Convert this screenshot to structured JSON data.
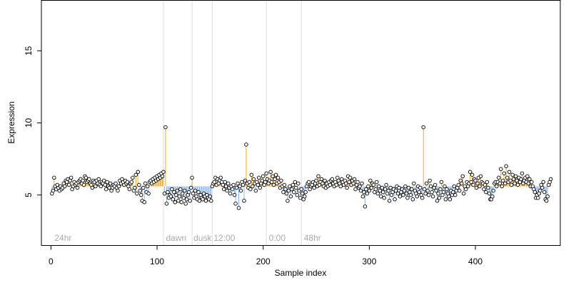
{
  "chart_data": {
    "type": "scatter",
    "xlabel": "Sample index",
    "ylabel": "Expression",
    "xlim": [
      -9,
      480
    ],
    "ylim": [
      1.5,
      18.5
    ],
    "x_ticks": [
      0,
      100,
      200,
      300,
      400
    ],
    "y_ticks": [
      5,
      10,
      15
    ],
    "baseline": 5.6,
    "colors": {
      "above": "#f5a623",
      "below": "#8db6e8",
      "points_fill": "#ffffff",
      "points_stroke": "#000000",
      "group_lines": "#dddddd",
      "group_labels": "#aaaaaa"
    },
    "group_boundaries": [
      106,
      133,
      152,
      203,
      236
    ],
    "group_labels": [
      {
        "x": 2,
        "text": "24hr"
      },
      {
        "x": 107,
        "text": "dawn"
      },
      {
        "x": 133,
        "text": "dusk"
      },
      {
        "x": 152,
        "text": "12:00"
      },
      {
        "x": 204,
        "text": "0:00"
      },
      {
        "x": 237,
        "text": "48hr"
      }
    ],
    "series": [
      {
        "values": [
          5.1,
          5.3,
          6.2,
          5.6,
          5.4,
          5.7,
          5.5,
          5.3,
          5.6,
          5.4,
          5.5,
          5.8,
          5.6,
          6.0,
          5.9,
          6.1,
          5.7,
          6.0,
          6.2,
          5.4,
          5.6,
          5.9,
          5.7,
          5.8,
          5.5,
          5.9,
          6.0,
          6.1,
          5.8,
          6.0,
          5.7,
          6.3,
          6.2,
          5.9,
          6.0,
          6.1,
          5.8,
          5.7,
          5.5,
          6.0,
          5.9,
          5.6,
          6.0,
          5.8,
          6.1,
          5.7,
          5.6,
          5.9,
          5.8,
          6.0,
          5.7,
          5.4,
          5.9,
          5.6,
          5.5,
          5.8,
          5.3,
          5.5,
          5.7,
          5.6,
          5.8,
          5.5,
          5.3,
          5.6,
          6.0,
          5.8,
          6.1,
          5.9,
          5.7,
          6.0,
          5.8,
          5.9,
          5.6,
          5.4,
          5.8,
          5.9,
          6.2,
          5.3,
          5.5,
          6.4,
          5.1,
          6.6,
          5.7,
          5.3,
          5.0,
          4.6,
          5.5,
          4.5,
          5.8,
          5.2,
          5.6,
          5.1,
          5.9,
          6.0,
          5.8,
          6.1,
          5.9,
          6.2,
          6.0,
          6.3,
          6.1,
          6.4,
          6.2,
          6.5,
          6.3,
          6.6,
          5.1,
          9.7,
          4.4,
          5.2,
          4.8,
          5.0,
          4.9,
          5.4,
          4.7,
          5.2,
          4.5,
          5.0,
          5.3,
          4.6,
          4.9,
          5.4,
          4.5,
          5.1,
          4.8,
          5.3,
          4.4,
          4.7,
          5.0,
          5.2,
          4.6,
          5.5,
          6.2,
          5.1,
          4.8,
          5.3,
          4.9,
          4.7,
          5.2,
          4.6,
          5.0,
          4.8,
          4.7,
          5.1,
          4.9,
          4.6,
          5.0,
          4.8,
          4.7,
          4.9,
          4.6,
          5.6,
          5.8,
          5.9,
          6.2,
          5.7,
          6.1,
          5.8,
          6.0,
          6.2,
          5.9,
          5.7,
          5.4,
          5.9,
          5.6,
          5.3,
          5.8,
          5.5,
          5.1,
          5.6,
          5.4,
          5.7,
          5.0,
          4.4,
          5.5,
          5.8,
          4.1,
          5.6,
          5.3,
          5.9,
          5.7,
          4.6,
          6.0,
          8.5,
          5.8,
          5.5,
          5.9,
          5.4,
          6.4,
          5.6,
          6.1,
          5.8,
          5.3,
          5.9,
          5.7,
          6.2,
          5.5,
          5.8,
          6.0,
          6.3,
          5.7,
          5.9,
          6.5,
          6.1,
          5.8,
          6.0,
          6.6,
          5.9,
          6.3,
          5.7,
          6.1,
          6.4,
          5.8,
          6.2,
          5.9,
          5.5,
          6.0,
          5.6,
          5.2,
          5.7,
          5.4,
          5.1,
          4.6,
          5.3,
          5.6,
          4.9,
          5.4,
          5.7,
          5.2,
          5.9,
          5.5,
          5.0,
          5.8,
          5.3,
          4.8,
          5.4,
          5.1,
          4.7,
          4.9,
          5.2,
          5.6,
          5.8,
          5.9,
          5.4,
          5.6,
          5.7,
          5.9,
          5.5,
          5.8,
          6.0,
          5.6,
          6.3,
          5.7,
          5.9,
          6.1,
          5.8,
          5.6,
          6.0,
          5.5,
          5.8,
          5.6,
          5.9,
          5.7,
          6.0,
          6.1,
          5.8,
          5.6,
          5.9,
          5.7,
          6.2,
          6.0,
          5.8,
          5.6,
          6.1,
          5.9,
          5.7,
          6.0,
          5.8,
          5.5,
          6.3,
          5.9,
          6.2,
          5.7,
          6.0,
          5.8,
          6.1,
          5.4,
          5.7,
          5.9,
          5.5,
          5.6,
          5.3,
          5.8,
          4.9,
          5.2,
          4.2,
          5.4,
          5.1,
          5.6,
          5.3,
          6.0,
          5.5,
          5.8,
          5.7,
          5.2,
          5.4,
          5.9,
          5.1,
          5.6,
          5.3,
          4.9,
          5.5,
          5.2,
          4.8,
          5.4,
          5.7,
          5.1,
          5.3,
          4.6,
          5.5,
          5.0,
          5.2,
          5.4,
          4.7,
          5.3,
          5.6,
          5.1,
          5.5,
          4.9,
          5.2,
          5.4,
          5.0,
          5.3,
          5.6,
          5.1,
          4.8,
          5.5,
          5.2,
          5.0,
          5.4,
          4.7,
          5.8,
          5.3,
          5.1,
          4.9,
          5.6,
          5.2,
          5.5,
          5.0,
          4.8,
          9.7,
          5.4,
          5.1,
          5.8,
          5.3,
          5.0,
          6.0,
          5.6,
          5.2,
          4.9,
          5.5,
          5.7,
          5.3,
          4.6,
          5.1,
          4.8,
          5.4,
          5.9,
          5.0,
          5.2,
          5.6,
          4.7,
          5.4,
          5.1,
          4.9,
          4.7,
          5.3,
          5.0,
          5.2,
          5.6,
          5.0,
          5.3,
          5.5,
          5.7,
          5.3,
          6.0,
          5.8,
          6.3,
          5.1,
          5.6,
          5.4,
          5.9,
          5.6,
          5.8,
          6.6,
          5.9,
          6.4,
          5.7,
          6.1,
          6.0,
          5.5,
          5.8,
          6.2,
          5.6,
          6.3,
          5.9,
          5.8,
          5.4,
          5.7,
          5.2,
          5.9,
          5.5,
          5.1,
          4.7,
          4.7,
          4.9,
          5.3,
          5.8,
          5.9,
          5.6,
          5.9,
          6.2,
          5.8,
          6.8,
          5.6,
          6.0,
          6.5,
          5.8,
          7.0,
          6.2,
          5.9,
          6.6,
          6.0,
          5.7,
          6.4,
          6.1,
          5.8,
          6.3,
          6.0,
          5.7,
          6.2,
          5.9,
          6.1,
          6.5,
          5.8,
          6.0,
          6.2,
          5.9,
          6.3,
          5.8,
          6.1,
          5.6,
          5.9,
          5.6,
          5.4,
          5.2,
          4.8,
          5.0,
          4.8,
          5.1,
          5.3,
          5.7,
          5.5,
          5.9,
          5.2,
          4.7,
          4.6,
          4.9,
          5.7,
          5.9,
          6.1
        ]
      }
    ]
  }
}
